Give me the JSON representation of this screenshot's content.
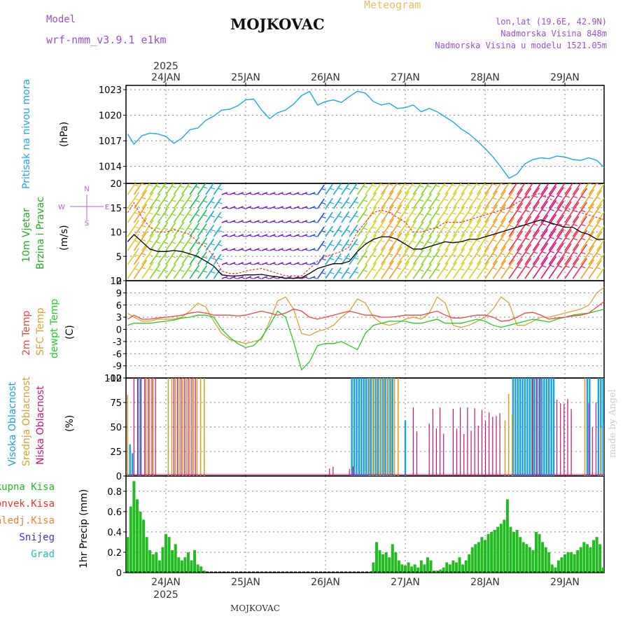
{
  "header": {
    "model_label": "Model",
    "model_name": "wrf-nmm_v3.9.1  e1km",
    "title": "MOJKOVAC",
    "subtitle": "Meteogram",
    "coords": "lon,lat (19.6E, 42.9N)",
    "elevation": "Nadmorska Visina 848m",
    "model_elevation": "Nadmorska Visina u modelu 1521.05m",
    "credit": "made by Angel",
    "footer": "MOJKOVAC"
  },
  "colors": {
    "pressure": "#1aa7e8",
    "temp2m": "#ee4444",
    "sfc_temp": "#e0a030",
    "dewpoint": "#22cc22",
    "cloud_high": "#1aa0e0",
    "cloud_mid": "#d4a030",
    "cloud_low": "#cc1177",
    "precip_total": "#22bb22",
    "precip_conv": "#ee3333",
    "precip_frz": "#f08030",
    "precip_snow": "#3333ee",
    "precip_grad": "#22bbbb",
    "wind_black": "#000000",
    "wind_red": "#ee3333",
    "title_purple": "#9b4fcf",
    "subtitle_tan": "#e8c060"
  },
  "chart_data": [
    {
      "type": "line",
      "name": "pressure",
      "ylabel_main": "Pritisak na nivou mora",
      "ylabel_unit": "(hPa)",
      "ylim": [
        1012,
        1023.5
      ],
      "yticks": [
        1014,
        1017,
        1020,
        1023
      ],
      "x_days": [
        "24JAN",
        "25JAN",
        "26JAN",
        "27JAN",
        "28JAN",
        "29JAN"
      ],
      "x_year": "2025",
      "grid": true,
      "x": [
        -0.48,
        -0.4,
        -0.3,
        -0.2,
        -0.1,
        0,
        0.1,
        0.2,
        0.3,
        0.4,
        0.5,
        0.6,
        0.7,
        0.8,
        0.9,
        1,
        1.1,
        1.2,
        1.3,
        1.4,
        1.5,
        1.6,
        1.7,
        1.8,
        1.9,
        2,
        2.1,
        2.2,
        2.3,
        2.4,
        2.5,
        2.6,
        2.7,
        2.8,
        2.9,
        3,
        3.1,
        3.2,
        3.3,
        3.4,
        3.5,
        3.6,
        3.7,
        3.8,
        3.9,
        4,
        4.1,
        4.2,
        4.3,
        4.4,
        4.5,
        4.6,
        4.7,
        4.8,
        4.9,
        5,
        5.1,
        5.2,
        5.3,
        5.4,
        5.5,
        5.52
      ],
      "series": [
        {
          "values": [
            1017.8,
            1016.6,
            1017.6,
            1017.9,
            1017.8,
            1017.5,
            1016.7,
            1017.3,
            1018.3,
            1018.5,
            1019.4,
            1019.9,
            1020.6,
            1020.7,
            1021.1,
            1021.8,
            1021.9,
            1020.6,
            1019.6,
            1020.3,
            1020.6,
            1021.3,
            1022.3,
            1022.8,
            1021.2,
            1021.6,
            1021.8,
            1021.5,
            1022.2,
            1022.8,
            1022.6,
            1021.6,
            1021.2,
            1021.4,
            1020.8,
            1020.9,
            1021.2,
            1020.4,
            1020.8,
            1020.4,
            1019.8,
            1019.2,
            1018.4,
            1017.8,
            1017.0,
            1016.1,
            1015.1,
            1013.9,
            1012.6,
            1013.1,
            1014.3,
            1014.8,
            1015.0,
            1014.9,
            1015.2,
            1015.1,
            1014.8,
            1014.7,
            1015.0,
            1014.7,
            1013.8,
            1013.6
          ]
        }
      ]
    },
    {
      "type": "line",
      "name": "wind",
      "ylabel_main": "10m Vjetar",
      "ylabel_sub": "Brzina i Pravac",
      "ylabel_unit": "(m/s)",
      "compass": {
        "n": "N",
        "s": "S",
        "e": "E",
        "w": "W"
      },
      "ylim": [
        0,
        20
      ],
      "yticks": [
        0,
        5,
        10,
        15,
        20
      ],
      "x": [
        -0.48,
        -0.4,
        -0.3,
        -0.2,
        -0.1,
        0,
        0.1,
        0.2,
        0.3,
        0.4,
        0.5,
        0.6,
        0.7,
        0.8,
        0.9,
        1,
        1.1,
        1.2,
        1.3,
        1.4,
        1.5,
        1.6,
        1.7,
        1.8,
        1.9,
        2,
        2.1,
        2.2,
        2.3,
        2.4,
        2.5,
        2.6,
        2.7,
        2.8,
        2.9,
        3,
        3.1,
        3.2,
        3.3,
        3.4,
        3.5,
        3.6,
        3.7,
        3.8,
        3.9,
        4,
        4.1,
        4.2,
        4.3,
        4.4,
        4.5,
        4.6,
        4.7,
        4.8,
        4.9,
        5,
        5.1,
        5.2,
        5.3,
        5.4,
        5.5
      ],
      "series": [
        {
          "name": "mean",
          "values": [
            8,
            9.5,
            8,
            6.5,
            6,
            6,
            6.2,
            6,
            5.5,
            5,
            4,
            3,
            1.2,
            1,
            1,
            1.2,
            1.2,
            1.3,
            1,
            0.8,
            0.5,
            0.5,
            0.6,
            1.5,
            2.5,
            3,
            3.5,
            3.5,
            4,
            6,
            7.5,
            8.5,
            9,
            9,
            8.5,
            7.5,
            6.5,
            6.5,
            7,
            7.5,
            8,
            7.8,
            8,
            8.5,
            8.5,
            9,
            9.5,
            10,
            10.5,
            11,
            11.5,
            12,
            12.5,
            12,
            11.5,
            11,
            11,
            10,
            9.5,
            8.5,
            8.5
          ]
        },
        {
          "name": "gust",
          "values": [
            14,
            16,
            13,
            11,
            10,
            10,
            10.5,
            10,
            9.5,
            8,
            7,
            5,
            2,
            1.5,
            1.5,
            2,
            2.3,
            2.5,
            2,
            1.5,
            1,
            1,
            1,
            2.5,
            4,
            5,
            5.5,
            6,
            7,
            10,
            12,
            14,
            14.5,
            14,
            13,
            12,
            10,
            10,
            10.5,
            11,
            12,
            12,
            12,
            12.5,
            13,
            13.5,
            14,
            14.5,
            15,
            16,
            17,
            17.5,
            18,
            17,
            16,
            15,
            14.5,
            14,
            13.5,
            13,
            12.5
          ]
        }
      ]
    },
    {
      "type": "line",
      "name": "temperature",
      "ylabel_a": "2m Temp",
      "ylabel_b": "SFC Temp",
      "ylabel_c": "dewpt Temp",
      "ylabel_unit": "(C)",
      "ylim": [
        -12,
        12
      ],
      "yticks": [
        -12,
        -9,
        -6,
        -3,
        0,
        3,
        6,
        9,
        12
      ],
      "x": [
        -0.48,
        -0.4,
        -0.3,
        -0.2,
        -0.1,
        0,
        0.1,
        0.2,
        0.3,
        0.4,
        0.5,
        0.6,
        0.7,
        0.8,
        0.9,
        1,
        1.1,
        1.2,
        1.3,
        1.4,
        1.5,
        1.6,
        1.7,
        1.8,
        1.9,
        2,
        2.1,
        2.2,
        2.3,
        2.4,
        2.5,
        2.6,
        2.7,
        2.8,
        2.9,
        3,
        3.1,
        3.2,
        3.3,
        3.4,
        3.5,
        3.6,
        3.7,
        3.8,
        3.9,
        4,
        4.1,
        4.2,
        4.3,
        4.4,
        4.5,
        4.6,
        4.7,
        4.8,
        4.9,
        5,
        5.1,
        5.2,
        5.3,
        5.4,
        5.5
      ],
      "series": [
        {
          "name": "2m",
          "values": [
            2.5,
            3.5,
            2.5,
            2.5,
            2.8,
            3,
            3.2,
            3.5,
            4,
            4.3,
            4,
            3.5,
            3.5,
            3.5,
            3.3,
            3.5,
            4,
            4.5,
            4,
            3.5,
            4,
            5,
            4.5,
            3,
            2.5,
            3,
            3.5,
            4,
            4.5,
            4,
            3.5,
            3.5,
            3,
            3,
            3.2,
            3.5,
            3.5,
            3.5,
            4,
            4.5,
            3.5,
            2.8,
            2.8,
            3.2,
            3.5,
            3.5,
            3,
            2,
            2.2,
            3,
            4,
            4.2,
            3.5,
            2.5,
            2.8,
            3,
            3.3,
            3.5,
            4,
            5.5,
            7
          ]
        },
        {
          "name": "sfc",
          "values": [
            4,
            3,
            2,
            2,
            2.5,
            2.5,
            2.5,
            3,
            4.5,
            6.5,
            5.5,
            2,
            -1,
            -2.5,
            -3,
            -3.5,
            -3,
            -2.5,
            2,
            7,
            8,
            5,
            -1,
            -1.5,
            -0.5,
            0,
            1,
            3,
            4.5,
            7.5,
            6.5,
            3,
            1.5,
            1,
            1.5,
            2.5,
            3,
            2.5,
            4,
            8,
            6.5,
            1,
            0.5,
            1,
            2,
            3,
            5,
            8,
            6.5,
            1,
            1,
            2,
            3,
            3,
            3.5,
            4,
            4.5,
            5,
            6,
            9,
            10.5
          ]
        },
        {
          "name": "dewpt",
          "values": [
            1,
            1.5,
            1.5,
            1.5,
            1.8,
            2,
            2.3,
            2.8,
            3,
            3.5,
            3.5,
            3,
            0,
            -2,
            -3.5,
            -4.5,
            -4,
            -2,
            1,
            4.5,
            3,
            -3,
            -10,
            -8,
            -4,
            -3.5,
            -3.5,
            -3,
            -4,
            -5,
            -1,
            1,
            1.5,
            2,
            2,
            2,
            1.5,
            1.5,
            2,
            2.5,
            1.5,
            1.5,
            1.5,
            2,
            2.5,
            2,
            1,
            0.5,
            1,
            1.5,
            2,
            2.5,
            2.2,
            1.8,
            2.5,
            3,
            3.5,
            3.8,
            4,
            4.5,
            5
          ]
        }
      ]
    },
    {
      "type": "bar",
      "name": "clouds",
      "ylabel_a": "Visoka Oblacnost",
      "ylabel_b": "Srednja Oblacnost",
      "ylabel_c": "Niska Oblacnost",
      "ylabel_unit": "(%)",
      "ylim": [
        0,
        100
      ],
      "yticks": [
        0,
        25,
        50,
        75,
        100
      ],
      "series": [
        {
          "name": "high",
          "segments": [
            [
              -0.45,
              -0.41,
              35
            ],
            [
              -0.35,
              -0.3,
              100
            ],
            [
              2.33,
              2.85,
              100
            ],
            [
              3.0,
              3.02,
              60
            ],
            [
              4.35,
              4.88,
              100
            ],
            [
              5.28,
              5.33,
              100
            ],
            [
              5.42,
              5.5,
              100
            ]
          ]
        },
        {
          "name": "mid",
          "segments": [
            [
              -0.48,
              -0.44,
              87
            ],
            [
              -0.25,
              -0.15,
              100
            ],
            [
              0.03,
              0.48,
              100
            ],
            [
              2.55,
              2.95,
              100
            ],
            [
              4.25,
              4.35,
              85
            ],
            [
              5.25,
              5.28,
              100
            ],
            [
              5.45,
              5.5,
              60
            ]
          ]
        },
        {
          "name": "low",
          "segments": [
            [
              -0.4,
              -0.1,
              100
            ],
            [
              0.1,
              0.4,
              100
            ],
            [
              2.05,
              2.1,
              10
            ],
            [
              2.3,
              2.35,
              10
            ],
            [
              3.1,
              3.15,
              70
            ],
            [
              3.3,
              3.5,
              70
            ],
            [
              3.6,
              4.2,
              70
            ],
            [
              4.6,
              4.7,
              95
            ],
            [
              4.9,
              5.1,
              85
            ],
            [
              5.3,
              5.4,
              75
            ]
          ]
        }
      ]
    },
    {
      "type": "bar",
      "name": "precip",
      "legend": [
        "Ukupna Kisa",
        "Konvek.Kisa",
        "Zaledj.Kisa",
        "Snijeg",
        "Grad"
      ],
      "ylabel_unit": "1hr Precip (mm)",
      "ylim": [
        0,
        0.95
      ],
      "yticks": [
        0,
        0.2,
        0.4,
        0.6,
        0.8
      ],
      "x": [
        -0.48,
        -0.44,
        -0.4,
        -0.36,
        -0.32,
        -0.28,
        -0.24,
        -0.2,
        -0.16,
        -0.12,
        -0.08,
        -0.04,
        0,
        0.04,
        0.08,
        0.12,
        0.16,
        0.2,
        0.24,
        0.28,
        0.32,
        0.36,
        0.4,
        0.44,
        0.48,
        2.6,
        2.64,
        2.68,
        2.72,
        2.76,
        2.8,
        2.84,
        2.88,
        2.92,
        2.96,
        3,
        3.04,
        3.08,
        3.12,
        3.16,
        3.2,
        3.24,
        3.28,
        3.32,
        3.36,
        3.4,
        3.44,
        3.48,
        3.52,
        3.56,
        3.6,
        3.64,
        3.68,
        3.72,
        3.76,
        3.8,
        3.84,
        3.88,
        3.92,
        3.96,
        4,
        4.04,
        4.08,
        4.12,
        4.16,
        4.2,
        4.24,
        4.28,
        4.32,
        4.36,
        4.4,
        4.44,
        4.48,
        4.52,
        4.56,
        4.6,
        4.64,
        4.68,
        4.72,
        4.76,
        4.8,
        4.84,
        4.88,
        4.92,
        4.96,
        5,
        5.04,
        5.08,
        5.12,
        5.16,
        5.2,
        5.24,
        5.28,
        5.32,
        5.36,
        5.4,
        5.44,
        5.48
      ],
      "series": [
        {
          "name": "total",
          "values": [
            0.35,
            0.65,
            0.9,
            0.72,
            0.6,
            0.52,
            0.35,
            0.22,
            0.18,
            0.2,
            0.12,
            0.25,
            0.38,
            0.35,
            0.22,
            0.28,
            0.15,
            0.12,
            0.15,
            0.2,
            0.12,
            0.22,
            0.08,
            0.06,
            0.02,
            0.1,
            0.3,
            0.22,
            0.18,
            0.2,
            0.15,
            0.28,
            0.2,
            0.12,
            0.08,
            0.07,
            0.1,
            0.06,
            0.08,
            0.05,
            0.12,
            0.08,
            0.15,
            0.12,
            0.02,
            0.02,
            0.03,
            0.05,
            0.1,
            0.08,
            0.12,
            0.1,
            0.15,
            0.08,
            0.12,
            0.18,
            0.25,
            0.28,
            0.3,
            0.35,
            0.32,
            0.38,
            0.4,
            0.42,
            0.45,
            0.48,
            0.52,
            0.72,
            0.45,
            0.4,
            0.42,
            0.35,
            0.3,
            0.28,
            0.25,
            0.22,
            0.4,
            0.38,
            0.3,
            0.25,
            0.2,
            0.08,
            0.05,
            0.12,
            0.15,
            0.18,
            0.2,
            0.2,
            0.18,
            0.22,
            0.25,
            0.3,
            0.28,
            0.25,
            0.32,
            0.35,
            0.28,
            0.05
          ]
        }
      ]
    }
  ]
}
